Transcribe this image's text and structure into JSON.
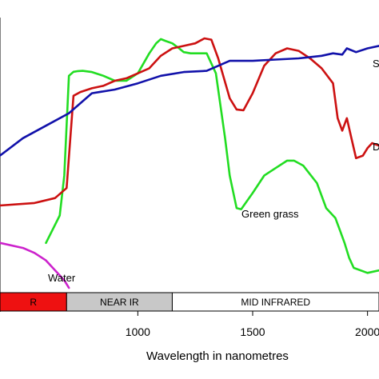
{
  "chart_data": {
    "type": "line",
    "title": "",
    "xlabel": "Wavelength in nanometres",
    "ylabel": "",
    "xlim": [
      400,
      2050
    ],
    "ylim": [
      0,
      100
    ],
    "grid": false,
    "x_ticks": [
      1000,
      1500,
      2000
    ],
    "x_tick_labels": [
      "1000",
      "1500",
      "2000"
    ],
    "bands": [
      {
        "label": "R",
        "from": 400,
        "to": 690,
        "color": "#ee1111"
      },
      {
        "label": "NEAR IR",
        "from": 690,
        "to": 1150,
        "color": "#c8c8c8"
      },
      {
        "label": "MID INFRARED",
        "from": 1150,
        "to": 2050,
        "color": "#ffffff"
      }
    ],
    "series": [
      {
        "name": "Green grass",
        "color": "#22dd22",
        "x": [
          600,
          660,
          680,
          700,
          720,
          740,
          760,
          800,
          850,
          900,
          950,
          1000,
          1050,
          1080,
          1100,
          1120,
          1150,
          1180,
          1200,
          1230,
          1300,
          1340,
          1380,
          1400,
          1430,
          1450,
          1500,
          1550,
          1600,
          1650,
          1680,
          1720,
          1780,
          1820,
          1860,
          1880,
          1900,
          1920,
          1940,
          2000,
          2050
        ],
        "y": [
          18,
          29,
          45,
          85,
          86.6,
          86.9,
          87,
          86.5,
          85,
          83,
          83,
          86,
          94,
          98,
          99.7,
          99,
          98,
          96,
          94.5,
          94,
          94,
          86,
          60,
          45,
          32,
          31.5,
          38,
          45,
          48,
          51,
          51,
          49,
          42,
          32,
          28,
          23,
          18,
          12,
          8,
          6,
          7
        ]
      },
      {
        "name": "D",
        "color": "#cc1111",
        "x": [
          400,
          550,
          640,
          690,
          720,
          750,
          800,
          850,
          900,
          950,
          1000,
          1050,
          1100,
          1150,
          1200,
          1250,
          1290,
          1320,
          1350,
          1400,
          1430,
          1460,
          1500,
          1550,
          1600,
          1650,
          1700,
          1750,
          1800,
          1850,
          1870,
          1890,
          1910,
          1930,
          1950,
          1980,
          2000,
          2020,
          2050
        ],
        "y": [
          33,
          34,
          36,
          40,
          77,
          78.5,
          80,
          81,
          83,
          84,
          86,
          88,
          93,
          96,
          97,
          98,
          100,
          99.5,
          92,
          76,
          71.5,
          71.2,
          78,
          89,
          94,
          96,
          95,
          92,
          88,
          82,
          68,
          63,
          68,
          60,
          52,
          53,
          56,
          58,
          57
        ]
      },
      {
        "name": "S",
        "color": "#1111aa",
        "x": [
          400,
          500,
          600,
          700,
          800,
          900,
          1000,
          1100,
          1200,
          1300,
          1350,
          1400,
          1500,
          1600,
          1700,
          1800,
          1850,
          1890,
          1910,
          1950,
          2000,
          2050
        ],
        "y": [
          53,
          60,
          65,
          70,
          78,
          79.5,
          82,
          85,
          86.5,
          87,
          89,
          91,
          91,
          91.5,
          92,
          93,
          94,
          93.5,
          96,
          94.5,
          96,
          97
        ]
      },
      {
        "name": "Water",
        "color": "#cc22cc",
        "x": [
          400,
          500,
          550,
          600,
          650,
          680,
          700
        ],
        "y": [
          18,
          16,
          14,
          11,
          6,
          3,
          0
        ]
      }
    ],
    "labels": [
      {
        "text": "Green grass",
        "series": "Green grass"
      },
      {
        "text": "Water",
        "series": "Water"
      },
      {
        "text": "S",
        "series": "S"
      },
      {
        "text": "D",
        "series": "D"
      }
    ]
  }
}
